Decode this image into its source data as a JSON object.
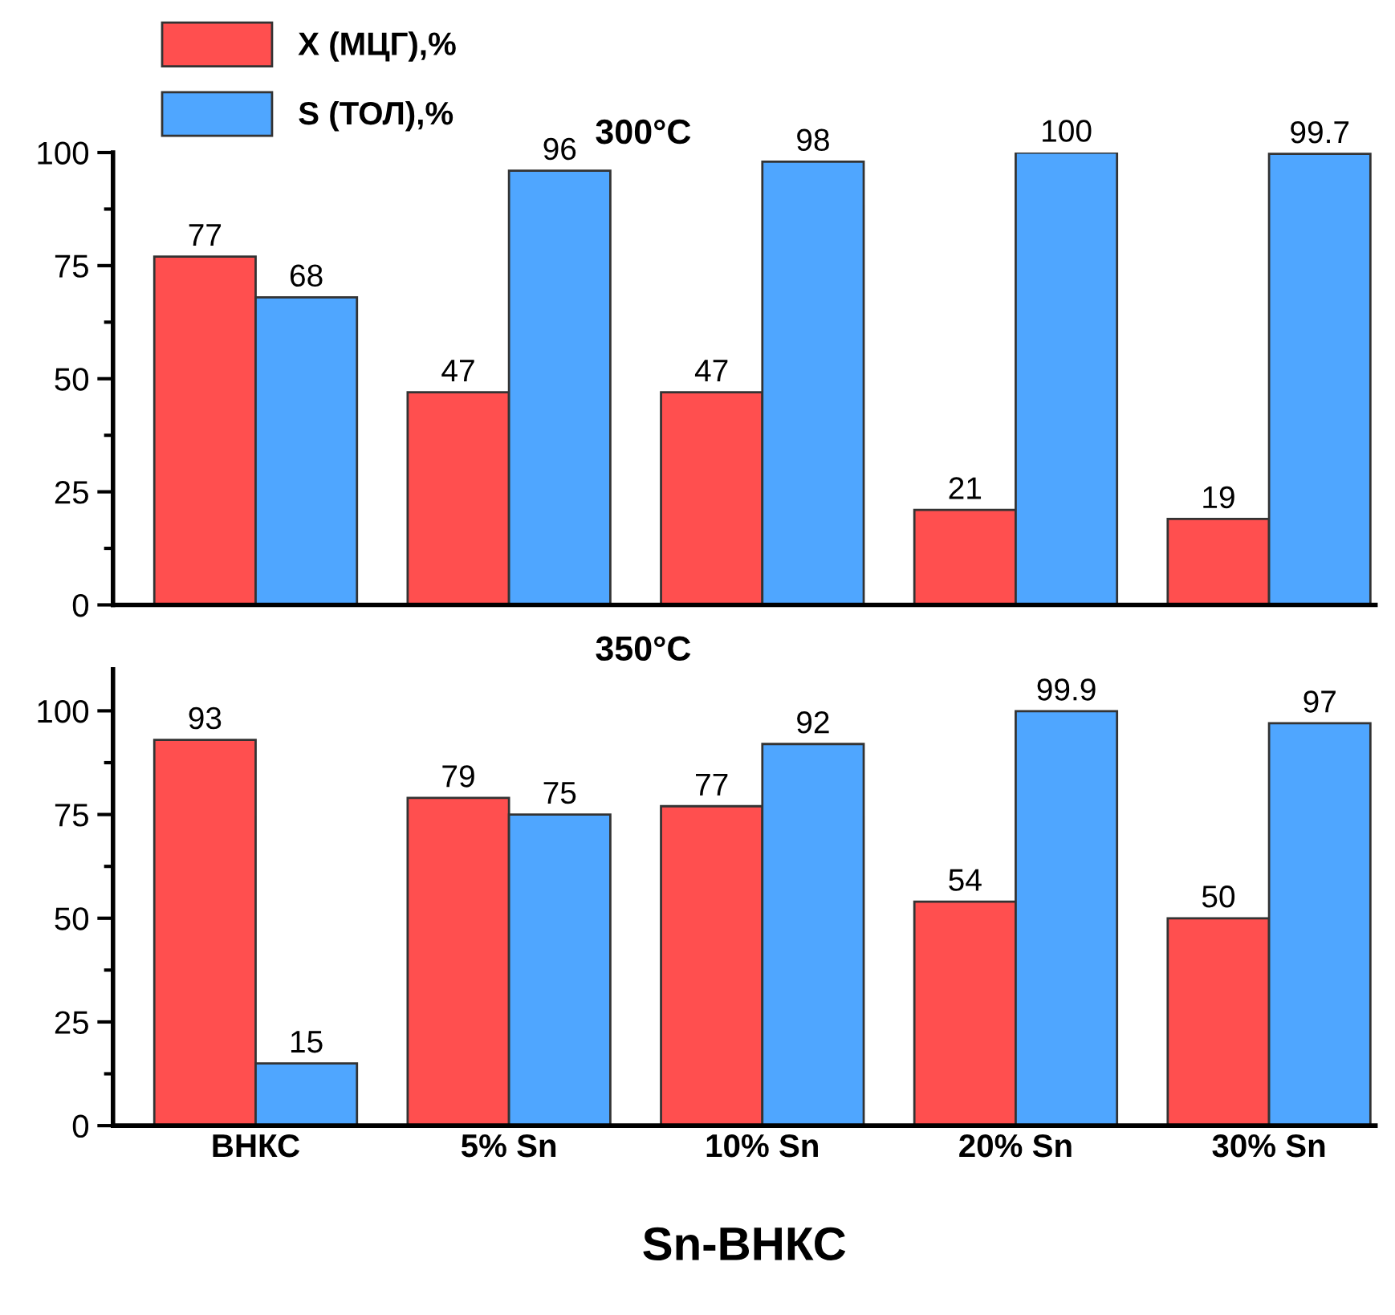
{
  "chart_data": [
    {
      "type": "bar",
      "title": "300°C",
      "categories": [
        null,
        null,
        null,
        null,
        null
      ],
      "series": [
        {
          "name": "X (МЦГ),%",
          "color": "#ff4f4f",
          "values": [
            77,
            47,
            47,
            21,
            19
          ]
        },
        {
          "name": "S (ТОЛ),%",
          "color": "#4fa6ff",
          "values": [
            68,
            96,
            98,
            100,
            99.7
          ]
        }
      ],
      "ylim": [
        0,
        100
      ],
      "yticks": [
        0,
        25,
        50,
        75,
        100
      ],
      "data_labels": true,
      "legend": "top left",
      "grid": false,
      "tick_labels": "y"
    },
    {
      "type": "bar",
      "title": "350°C",
      "xlabel": "Sn-ВНКС",
      "categories": [
        "ВНКС",
        "5% Sn",
        "10% Sn",
        "20% Sn",
        "30% Sn"
      ],
      "series": [
        {
          "color": "#ff4f4f",
          "values": [
            93,
            79,
            77,
            54,
            50
          ]
        },
        {
          "color": "#4fa6ff",
          "values": [
            15,
            75,
            92,
            99.9,
            97
          ]
        }
      ],
      "ylim": [
        0,
        110
      ],
      "yticks": [
        0,
        25,
        50,
        75,
        100
      ],
      "data_labels": true,
      "grid": false
    }
  ]
}
